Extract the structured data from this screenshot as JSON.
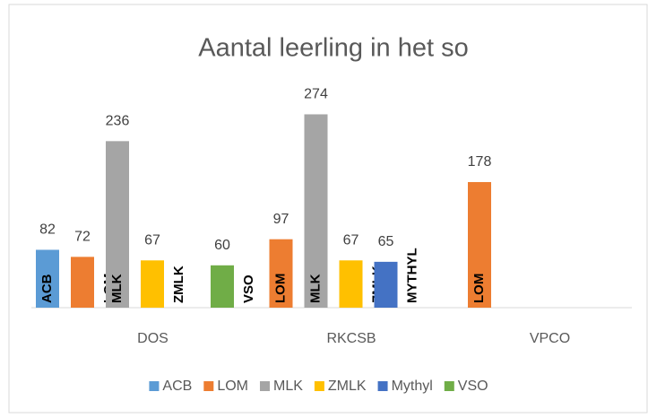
{
  "chart_data": {
    "type": "bar",
    "title": "Aantal leerling in het so",
    "categories": [
      "DOS",
      "RKCSB",
      "VPCO"
    ],
    "series": [
      {
        "name": "ACB",
        "label": "ACB",
        "color": "#5b9bd5",
        "values": [
          82,
          null,
          null
        ]
      },
      {
        "name": "LOM",
        "label": "LOM",
        "color": "#ed7d31",
        "values": [
          72,
          97,
          178
        ]
      },
      {
        "name": "MLK",
        "label": "MLK",
        "color": "#a5a5a5",
        "values": [
          236,
          274,
          null
        ]
      },
      {
        "name": "ZMLK",
        "label": "ZMLK",
        "color": "#ffc000",
        "values": [
          67,
          67,
          null
        ]
      },
      {
        "name": "Mythyl",
        "label": "MYTHYL",
        "color": "#4472c4",
        "values": [
          null,
          65,
          null
        ]
      },
      {
        "name": "VSO",
        "label": "VSO",
        "color": "#70ad47",
        "values": [
          60,
          null,
          null
        ]
      }
    ],
    "ylim": [
      0,
      300
    ],
    "legend": "bottom"
  }
}
